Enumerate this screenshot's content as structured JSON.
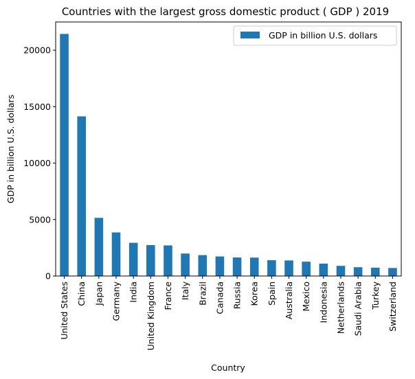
{
  "chart_data": {
    "type": "bar",
    "title": "Countries with the largest gross domestic product ( GDP ) 2019",
    "xlabel": "Country",
    "ylabel": "GDP in billion U.S. dollars",
    "ylim": [
      0,
      22500
    ],
    "yticks": [
      0,
      5000,
      10000,
      15000,
      20000
    ],
    "ytick_labels": [
      "0",
      "5000",
      "10000",
      "15000",
      "20000"
    ],
    "grid": false,
    "legend_position": "top-right",
    "bar_color": "#1f77b4",
    "categories": [
      "United States",
      "China",
      "Japan",
      "Germany",
      "India",
      "United Kingdom",
      "France",
      "Italy",
      "Brazil",
      "Canada",
      "Russia",
      "Korea",
      "Spain",
      "Australia",
      "Mexico",
      "Indonesia",
      "Netherlands",
      "Saudi Arabia",
      "Turkey",
      "Switzerland"
    ],
    "series": [
      {
        "name": "GDP in billion U.S. dollars",
        "values": [
          21440,
          14140,
          5150,
          3860,
          2940,
          2740,
          2710,
          1990,
          1850,
          1730,
          1640,
          1630,
          1400,
          1380,
          1270,
          1100,
          900,
          780,
          740,
          710
        ]
      }
    ]
  }
}
